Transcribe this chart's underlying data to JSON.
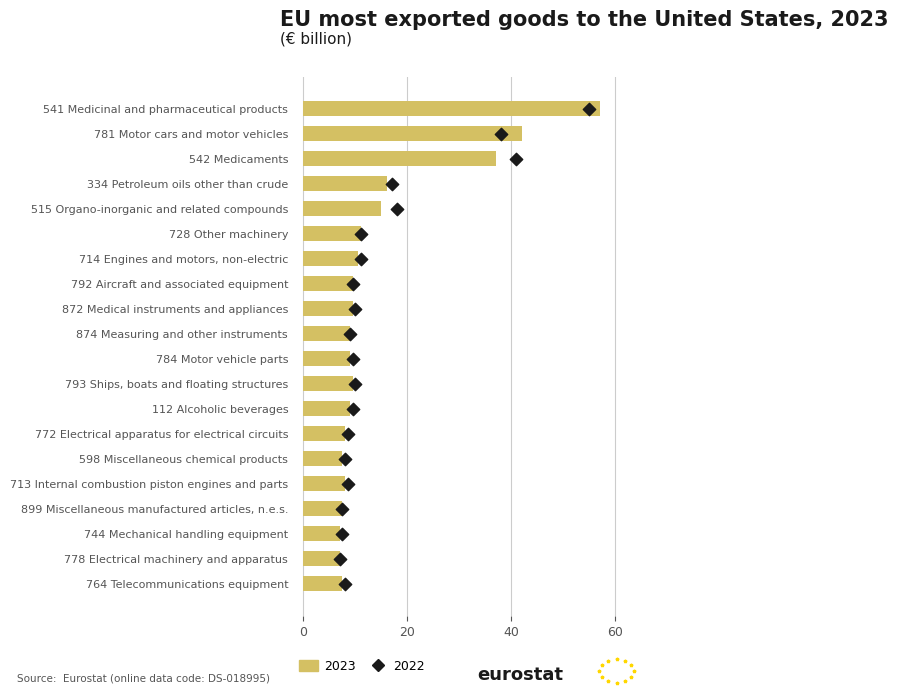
{
  "title": "EU most exported goods to the United States, 2023",
  "subtitle": "(€ billion)",
  "source": "Source:  Eurostat (online data code: DS-018995)",
  "categories": [
    "541 Medicinal and pharmaceutical products",
    "781 Motor cars and motor vehicles",
    "542 Medicaments",
    "334 Petroleum oils other than crude",
    "515 Organo-inorganic and related compounds",
    "728 Other machinery",
    "714 Engines and motors, non-electric",
    "792 Aircraft and associated equipment",
    "872 Medical instruments and appliances",
    "874 Measuring and other instruments",
    "784 Motor vehicle parts",
    "793 Ships, boats and floating structures",
    "112 Alcoholic beverages",
    "772 Electrical apparatus for electrical circuits",
    "598 Miscellaneous chemical products",
    "713 Internal combustion piston engines and parts",
    "899 Miscellaneous manufactured articles, n.e.s.",
    "744 Mechanical handling equipment",
    "778 Electrical machinery and apparatus",
    "764 Telecommunications equipment"
  ],
  "values_2023": [
    57,
    42,
    37,
    16,
    15,
    11,
    10.5,
    9.5,
    9.5,
    9,
    9,
    9.5,
    9,
    8,
    7.5,
    8,
    7.5,
    7,
    7,
    7.5
  ],
  "values_2022": [
    55,
    38,
    41,
    17,
    18,
    11,
    11,
    9.5,
    10,
    9,
    9.5,
    10,
    9.5,
    8.5,
    8,
    8.5,
    7.5,
    7.5,
    7,
    8
  ],
  "bar_color": "#d4c063",
  "scatter_color": "#1a1a1a",
  "background_color": "#ffffff",
  "xlim": [
    -2,
    65
  ],
  "xticks": [
    0,
    20,
    40,
    60
  ],
  "legend_2023": "2023",
  "legend_2022": "2022",
  "title_fontsize": 15,
  "subtitle_fontsize": 11,
  "label_fontsize": 8.0,
  "tick_fontsize": 9,
  "bar_height": 0.6
}
